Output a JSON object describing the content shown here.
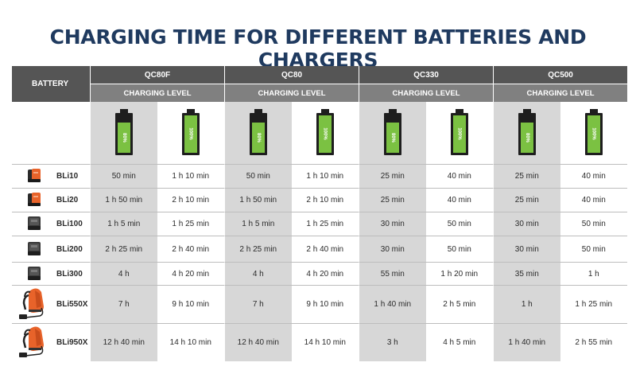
{
  "title": "CHARGING TIME FOR DIFFERENT BATTERIES AND CHARGERS",
  "header": {
    "battery_label": "BATTERY",
    "charging_level_label": "CHARGING LEVEL",
    "chargers": [
      "QC80F",
      "QC80",
      "QC330",
      "QC500"
    ]
  },
  "charge_levels": [
    {
      "label": "80%",
      "fill": 0.8
    },
    {
      "label": "100%",
      "fill": 1.0
    }
  ],
  "colors": {
    "title": "#1f3a5f",
    "header_dark": "#555555",
    "header_mid": "#808080",
    "battery_fill": "#7bc142",
    "pack_orange": "#e8632a"
  },
  "rows": [
    {
      "name": "BLi10",
      "icon": "small-orange-battery-icon",
      "values": [
        "50 min",
        "1 h 10 min",
        "50 min",
        "1 h 10 min",
        "25 min",
        "40 min",
        "25 min",
        "40 min"
      ]
    },
    {
      "name": "BLi20",
      "icon": "small-orange-battery-icon",
      "values": [
        "1 h 50 min",
        "2 h 10 min",
        "1 h 50 min",
        "2 h 10 min",
        "25 min",
        "40 min",
        "25 min",
        "40 min"
      ]
    },
    {
      "name": "BLi100",
      "icon": "dark-battery-icon",
      "values": [
        "1 h 5 min",
        "1 h 25 min",
        "1 h 5 min",
        "1 h 25 min",
        "30 min",
        "50 min",
        "30 min",
        "50 min"
      ]
    },
    {
      "name": "BLi200",
      "icon": "dark-battery-icon",
      "values": [
        "2 h 25 min",
        "2 h 40 min",
        "2 h 25 min",
        "2 h 40 min",
        "30 min",
        "50 min",
        "30 min",
        "50 min"
      ]
    },
    {
      "name": "BLi300",
      "icon": "dark-battery-icon",
      "values": [
        "4 h",
        "4 h 20 min",
        "4 h",
        "4 h 20 min",
        "55 min",
        "1 h 20 min",
        "35 min",
        "1 h"
      ]
    },
    {
      "name": "BLi550X",
      "icon": "backpack-battery-icon",
      "values": [
        "7 h",
        "9 h 10 min",
        "7 h",
        "9 h 10 min",
        "1 h 40 min",
        "2 h 5 min",
        "1 h",
        "1 h 25 min"
      ]
    },
    {
      "name": "BLi950X",
      "icon": "backpack-battery-icon",
      "values": [
        "12 h 40 min",
        "14 h 10 min",
        "12 h 40 min",
        "14 h 10 min",
        "3 h",
        "4 h 5 min",
        "1 h 40 min",
        "2 h 55 min"
      ]
    }
  ]
}
